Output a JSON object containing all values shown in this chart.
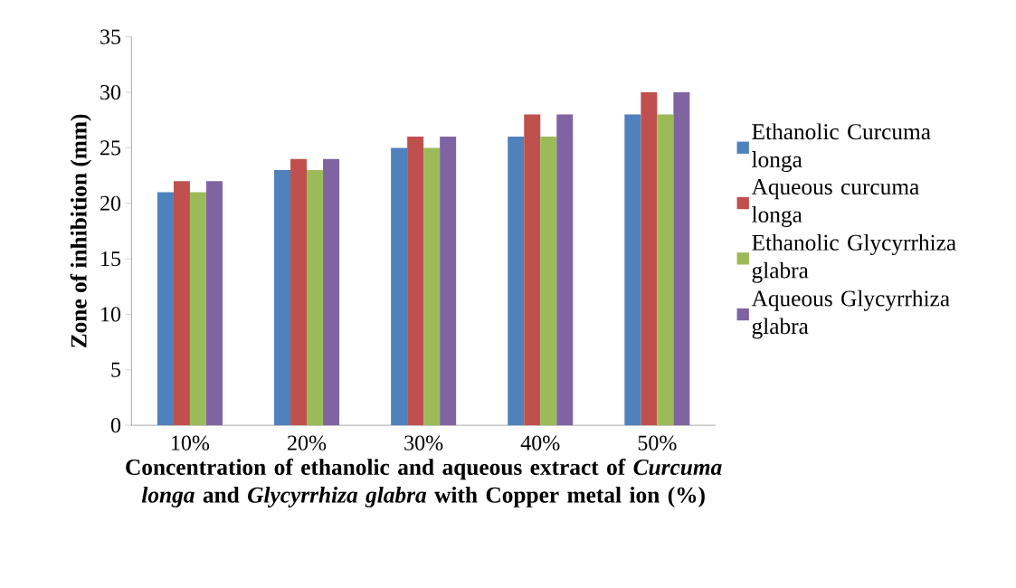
{
  "chart_data": {
    "type": "bar",
    "categories": [
      "10%",
      "20%",
      "30%",
      "40%",
      "50%"
    ],
    "series": [
      {
        "name": "Ethanolic Curcuma longa",
        "color": "#4f81bd",
        "values": [
          21,
          23,
          25,
          26,
          28
        ]
      },
      {
        "name": "Aqueous curcuma longa",
        "color": "#c0504d",
        "values": [
          22,
          24,
          26,
          28,
          30
        ]
      },
      {
        "name": "Ethanolic Glycyrrhiza glabra",
        "color": "#9bbb59",
        "values": [
          21,
          23,
          25,
          26,
          28
        ]
      },
      {
        "name": "Aqueous Glycyrrhiza glabra",
        "color": "#8064a2",
        "values": [
          22,
          24,
          26,
          28,
          30
        ]
      }
    ],
    "ylim": [
      0,
      35
    ],
    "yticks": [
      0,
      5,
      10,
      15,
      20,
      25,
      30,
      35
    ],
    "xlabel": "Concentration of ethanolic and aqueous extract of *Curcuma longa* and *Glycyrrhiza glabra* with Copper metal ion (%)",
    "ylabel": "Zone of inhibition (mm)",
    "legend": "right"
  }
}
